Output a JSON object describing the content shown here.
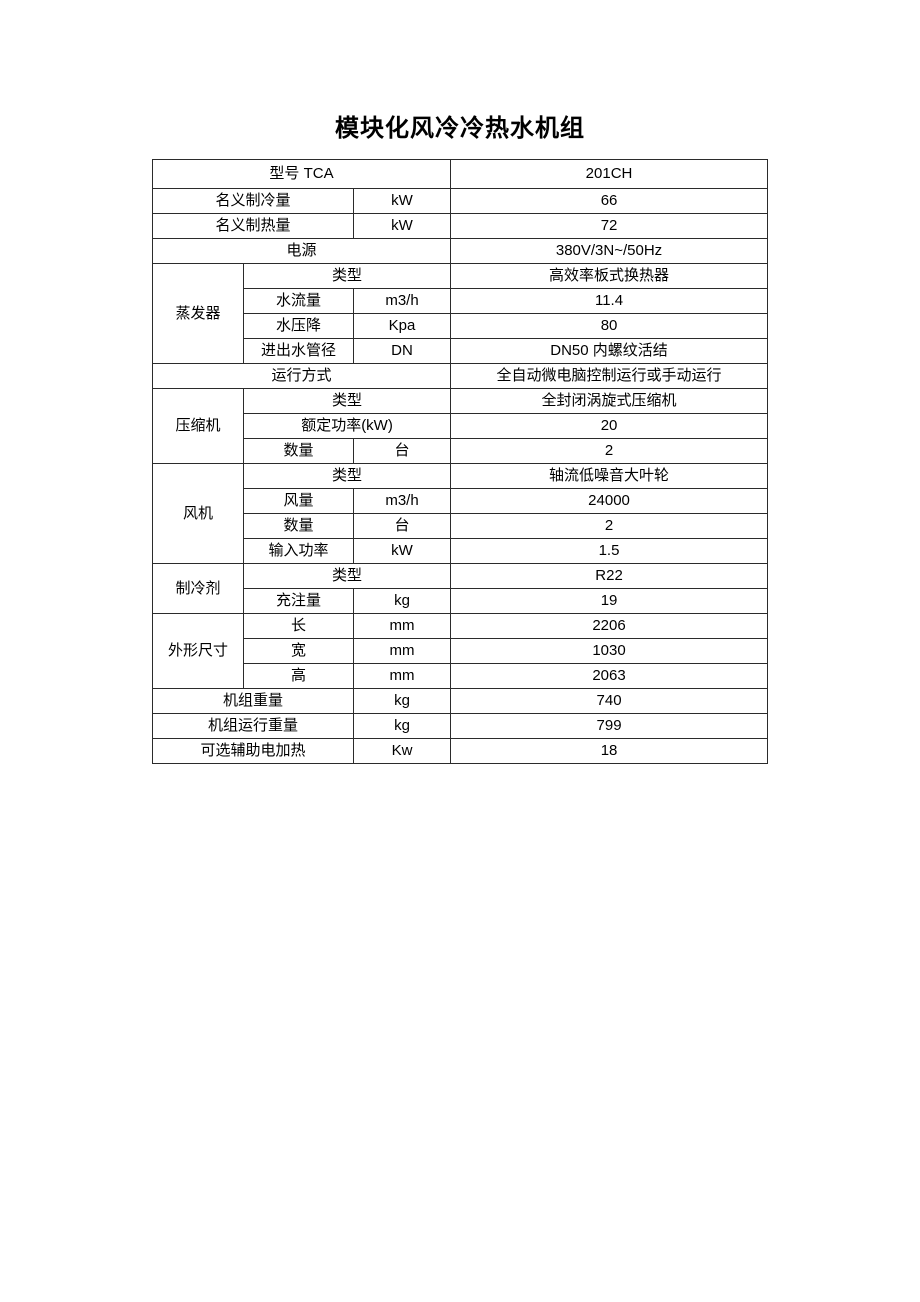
{
  "page": {
    "title": "模块化风冷冷热水机组"
  },
  "colors": {
    "background": "#ffffff",
    "text": "#000000",
    "table_border": "#2b2b2b"
  },
  "table": {
    "rows": [
      {
        "label": "型号 TCA",
        "value": "201CH"
      },
      {
        "label": "名义制冷量",
        "unit": "kW",
        "value": "66"
      },
      {
        "label": "名义制热量",
        "unit": "kW",
        "value": "72"
      },
      {
        "label": "电源",
        "value": "380V/3N~/50Hz"
      },
      {
        "group": "蒸发器",
        "label": "类型",
        "value": "高效率板式换热器"
      },
      {
        "label": "水流量",
        "unit": "m3/h",
        "value": "11.4"
      },
      {
        "label": "水压降",
        "unit": "Kpa",
        "value": "80"
      },
      {
        "label": "进出水管径",
        "unit": "DN",
        "value": "DN50 内螺纹活结"
      },
      {
        "label": "运行方式",
        "value": "全自动微电脑控制运行或手动运行"
      },
      {
        "group": "压缩机",
        "label": "类型",
        "value": "全封闭涡旋式压缩机"
      },
      {
        "label": "额定功率(kW)",
        "value": "20"
      },
      {
        "label": "数量",
        "unit": "台",
        "value": "2"
      },
      {
        "group": "风机",
        "label": "类型",
        "value": "轴流低噪音大叶轮"
      },
      {
        "label": "风量",
        "unit": "m3/h",
        "value": "24000"
      },
      {
        "label": "数量",
        "unit": "台",
        "value": "2"
      },
      {
        "label": "输入功率",
        "unit": "kW",
        "value": "1.5"
      },
      {
        "group": "制冷剂",
        "label": "类型",
        "value": "R22"
      },
      {
        "label": "充注量",
        "unit": "kg",
        "value": "19"
      },
      {
        "group": "外形尺寸",
        "label": "长",
        "unit": "mm",
        "value": "2206"
      },
      {
        "label": "宽",
        "unit": "mm",
        "value": "1030"
      },
      {
        "label": "高",
        "unit": "mm",
        "value": "2063"
      },
      {
        "label": "机组重量",
        "unit": "kg",
        "value": "740"
      },
      {
        "label": "机组运行重量",
        "unit": "kg",
        "value": "799"
      },
      {
        "label": "可选辅助电加热",
        "unit": "Kw",
        "value": "18"
      }
    ]
  }
}
